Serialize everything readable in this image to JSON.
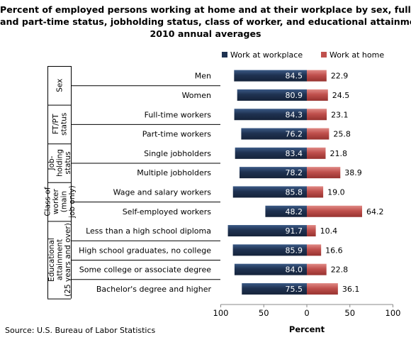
{
  "title_lines": [
    "Percent of employed persons working at home and at their workplace by sex, full-",
    "and part-time status, jobholding status, class of worker, and educational attainment",
    "2010 annual averages"
  ],
  "source": "Source: U.S. Bureau of Labor Statistics",
  "colors": {
    "workplace": "#1F3251",
    "home": "#C0504D"
  },
  "chart_data": {
    "type": "bar",
    "orientation": "horizontal",
    "layout": "back-to-back",
    "xlabel": "Percent",
    "xticks": [
      "100",
      "50",
      "0",
      "50",
      "100"
    ],
    "legend": {
      "position": "top-right",
      "entries": [
        "Work at workplace",
        "Work at home"
      ]
    },
    "groups": [
      {
        "label_lines": [
          "Sex"
        ],
        "categories": [
          "Men",
          "Women"
        ]
      },
      {
        "label_lines": [
          "FT/PT",
          "status"
        ],
        "categories": [
          "Full-time workers",
          "Part-time workers"
        ]
      },
      {
        "label_lines": [
          "Job-",
          "holding",
          "status"
        ],
        "categories": [
          "Single jobholders",
          "Multiple jobholders"
        ]
      },
      {
        "label_lines": [
          "Class of",
          "worker",
          "(main",
          "job only)"
        ],
        "categories": [
          "Wage and salary workers",
          "Self-employed workers"
        ]
      },
      {
        "label_lines": [
          "Educational",
          "attainment",
          "(25 years and over)"
        ],
        "categories": [
          "Less than a high school  diploma",
          "High school graduates, no college",
          "Some college or associate degree",
          "Bachelor's degree and higher"
        ]
      }
    ],
    "categories": [
      "Men",
      "Women",
      "Full-time workers",
      "Part-time workers",
      "Single jobholders",
      "Multiple jobholders",
      "Wage and salary workers",
      "Self-employed workers",
      "Less than a high school  diploma",
      "High school graduates, no college",
      "Some college or associate degree",
      "Bachelor's degree and higher"
    ],
    "series": [
      {
        "name": "Work at workplace",
        "direction": "left",
        "values": [
          84.5,
          80.9,
          84.3,
          76.2,
          83.4,
          78.2,
          85.8,
          48.2,
          91.7,
          85.9,
          84.0,
          75.5
        ],
        "labels": [
          "84.5",
          "80.9",
          "84.3",
          "76.2",
          "83.4",
          "78.2",
          "85.8",
          "48.2",
          "91.7",
          "85.9",
          "84.0",
          "75.5"
        ]
      },
      {
        "name": "Work at home",
        "direction": "right",
        "values": [
          22.9,
          24.5,
          23.1,
          25.8,
          21.8,
          38.9,
          19.0,
          64.2,
          10.4,
          16.6,
          22.8,
          36.1
        ],
        "labels": [
          "22.9",
          "24.5",
          "23.1",
          "25.8",
          "21.8",
          "38.9",
          "19.0",
          "64.2",
          "10.4",
          "16.6",
          "22.8",
          "36.1"
        ]
      }
    ],
    "xlim": [
      -100,
      100
    ],
    "grid": false
  }
}
